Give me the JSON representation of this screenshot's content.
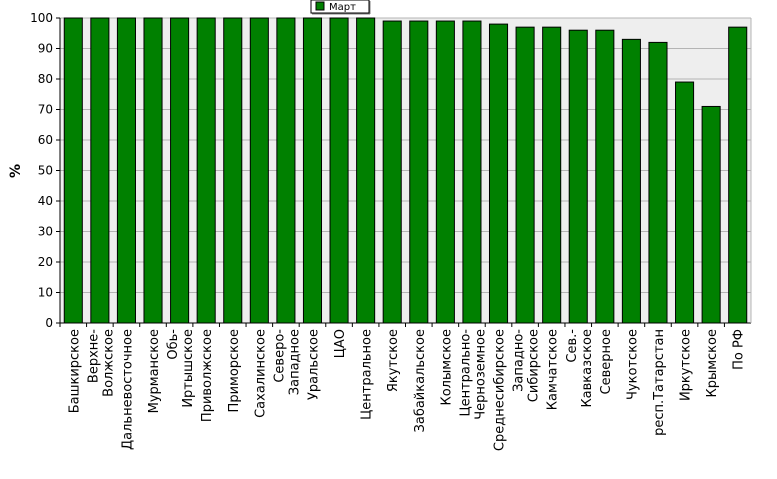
{
  "chart_data": {
    "type": "bar",
    "ylabel": "%",
    "ylim": [
      0,
      100
    ],
    "yticks": [
      0,
      10,
      20,
      30,
      40,
      50,
      60,
      70,
      80,
      90,
      100
    ],
    "grid": true,
    "legend": {
      "placement": "top-center",
      "entries": [
        "Март"
      ]
    },
    "bar_color": "#008000",
    "plot_background": "#eeeeee",
    "categories": [
      [
        "Башкирское"
      ],
      [
        "Верхне-",
        "Волжское"
      ],
      [
        "Дальневосточное"
      ],
      [
        "Мурманское"
      ],
      [
        "Обь-",
        "Иртышское"
      ],
      [
        "Приволжское"
      ],
      [
        "Приморское"
      ],
      [
        "Сахалинское"
      ],
      [
        "Северо-",
        "Западное"
      ],
      [
        "Уральское"
      ],
      [
        "ЦАО"
      ],
      [
        "Центральное"
      ],
      [
        "Якутское"
      ],
      [
        "Забайкальское"
      ],
      [
        "Колымское"
      ],
      [
        "Центрально-",
        "Черноземное"
      ],
      [
        "Среднесибирское"
      ],
      [
        "Западно-",
        "Сибирское"
      ],
      [
        "Камчатское"
      ],
      [
        "Сев.-",
        "Кавказское"
      ],
      [
        "Северное"
      ],
      [
        "Чукотское"
      ],
      [
        "респ.Татарстан"
      ],
      [
        "Иркутское"
      ],
      [
        "Крымское"
      ],
      [
        "По РФ"
      ]
    ],
    "series": [
      {
        "name": "Март",
        "values": [
          100,
          100,
          100,
          100,
          100,
          100,
          100,
          100,
          100,
          100,
          100,
          100,
          99,
          99,
          99,
          99,
          98,
          97,
          97,
          96,
          96,
          93,
          92,
          79,
          71,
          97
        ]
      }
    ]
  }
}
